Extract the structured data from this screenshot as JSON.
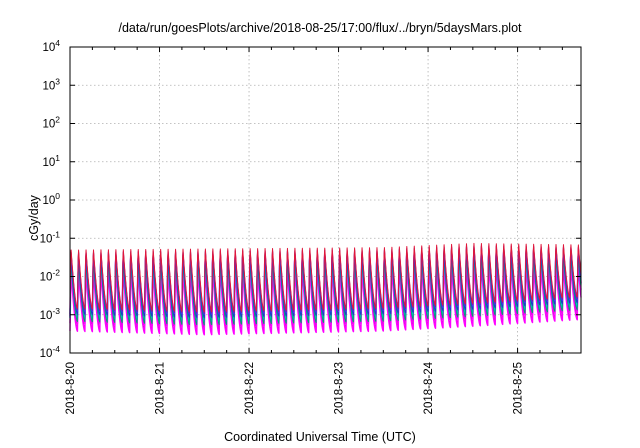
{
  "chart_data": {
    "type": "line",
    "title": "/data/run/goesPlots/archive/2018-08-25/17:00/flux/../bryn/5daysMars.plot",
    "xlabel": "Coordinated Universal Time (UTC)",
    "ylabel": "cGy/day",
    "yscale": "log",
    "ylim": [
      0.0001,
      10000
    ],
    "xlim": [
      "2018-08-20 00:00",
      "2018-08-25 17:00"
    ],
    "grid": true,
    "legend": "none",
    "y_ticks": [
      {
        "base": "10",
        "exp": "-4",
        "value": 0.0001
      },
      {
        "base": "10",
        "exp": "-3",
        "value": 0.001
      },
      {
        "base": "10",
        "exp": "-2",
        "value": 0.01
      },
      {
        "base": "10",
        "exp": "-1",
        "value": 0.1
      },
      {
        "base": "10",
        "exp": "0",
        "value": 1
      },
      {
        "base": "10",
        "exp": "1",
        "value": 10
      },
      {
        "base": "10",
        "exp": "2",
        "value": 100
      },
      {
        "base": "10",
        "exp": "3",
        "value": 1000
      },
      {
        "base": "10",
        "exp": "4",
        "value": 10000
      }
    ],
    "x_ticks": [
      "2018-8-20",
      "2018-8-21",
      "2018-8-22",
      "2018-8-23",
      "2018-8-24",
      "2018-8-25"
    ],
    "oscillation": {
      "period_hours": 2,
      "peak_envelope": [
        {
          "t": "2018-08-20 00:00",
          "value": 0.06
        },
        {
          "t": "2018-08-21 12:00",
          "value": 0.065
        },
        {
          "t": "2018-08-23 12:00",
          "value": 0.07
        },
        {
          "t": "2018-08-24 12:00",
          "value": 0.09
        },
        {
          "t": "2018-08-25 17:00",
          "value": 0.08
        }
      ],
      "trough_envelope": [
        {
          "t": "2018-08-20 00:00",
          "value": 0.0015
        },
        {
          "t": "2018-08-21 12:00",
          "value": 0.0012
        },
        {
          "t": "2018-08-23 12:00",
          "value": 0.0015
        },
        {
          "t": "2018-08-24 12:00",
          "value": 0.002
        },
        {
          "t": "2018-08-25 17:00",
          "value": 0.003
        }
      ]
    },
    "series": [
      {
        "color": "#ff00ff",
        "scale": 0.6,
        "width": 1.6
      },
      {
        "color": "#cc00cc",
        "scale": 0.5,
        "width": 1.0
      },
      {
        "color": "#ff00ff",
        "scale": 0.4,
        "width": 1.4
      },
      {
        "color": "#8b1a8b",
        "scale": 0.3,
        "width": 0.9
      },
      {
        "color": "#ff00ff",
        "scale": 0.25,
        "width": 1.4
      },
      {
        "color": "#00ced1",
        "scale": 0.55,
        "width": 1.4
      },
      {
        "color": "#009e73",
        "scale": 0.45,
        "width": 0.9
      },
      {
        "color": "#1f3fbf",
        "scale": 0.7,
        "width": 1.2
      },
      {
        "color": "#3b3bff",
        "scale": 0.85,
        "width": 1.1
      },
      {
        "color": "#7f1aa3",
        "scale": 0.9,
        "width": 0.9
      },
      {
        "color": "#e0183c",
        "scale": 1.0,
        "width": 1.0
      }
    ]
  }
}
